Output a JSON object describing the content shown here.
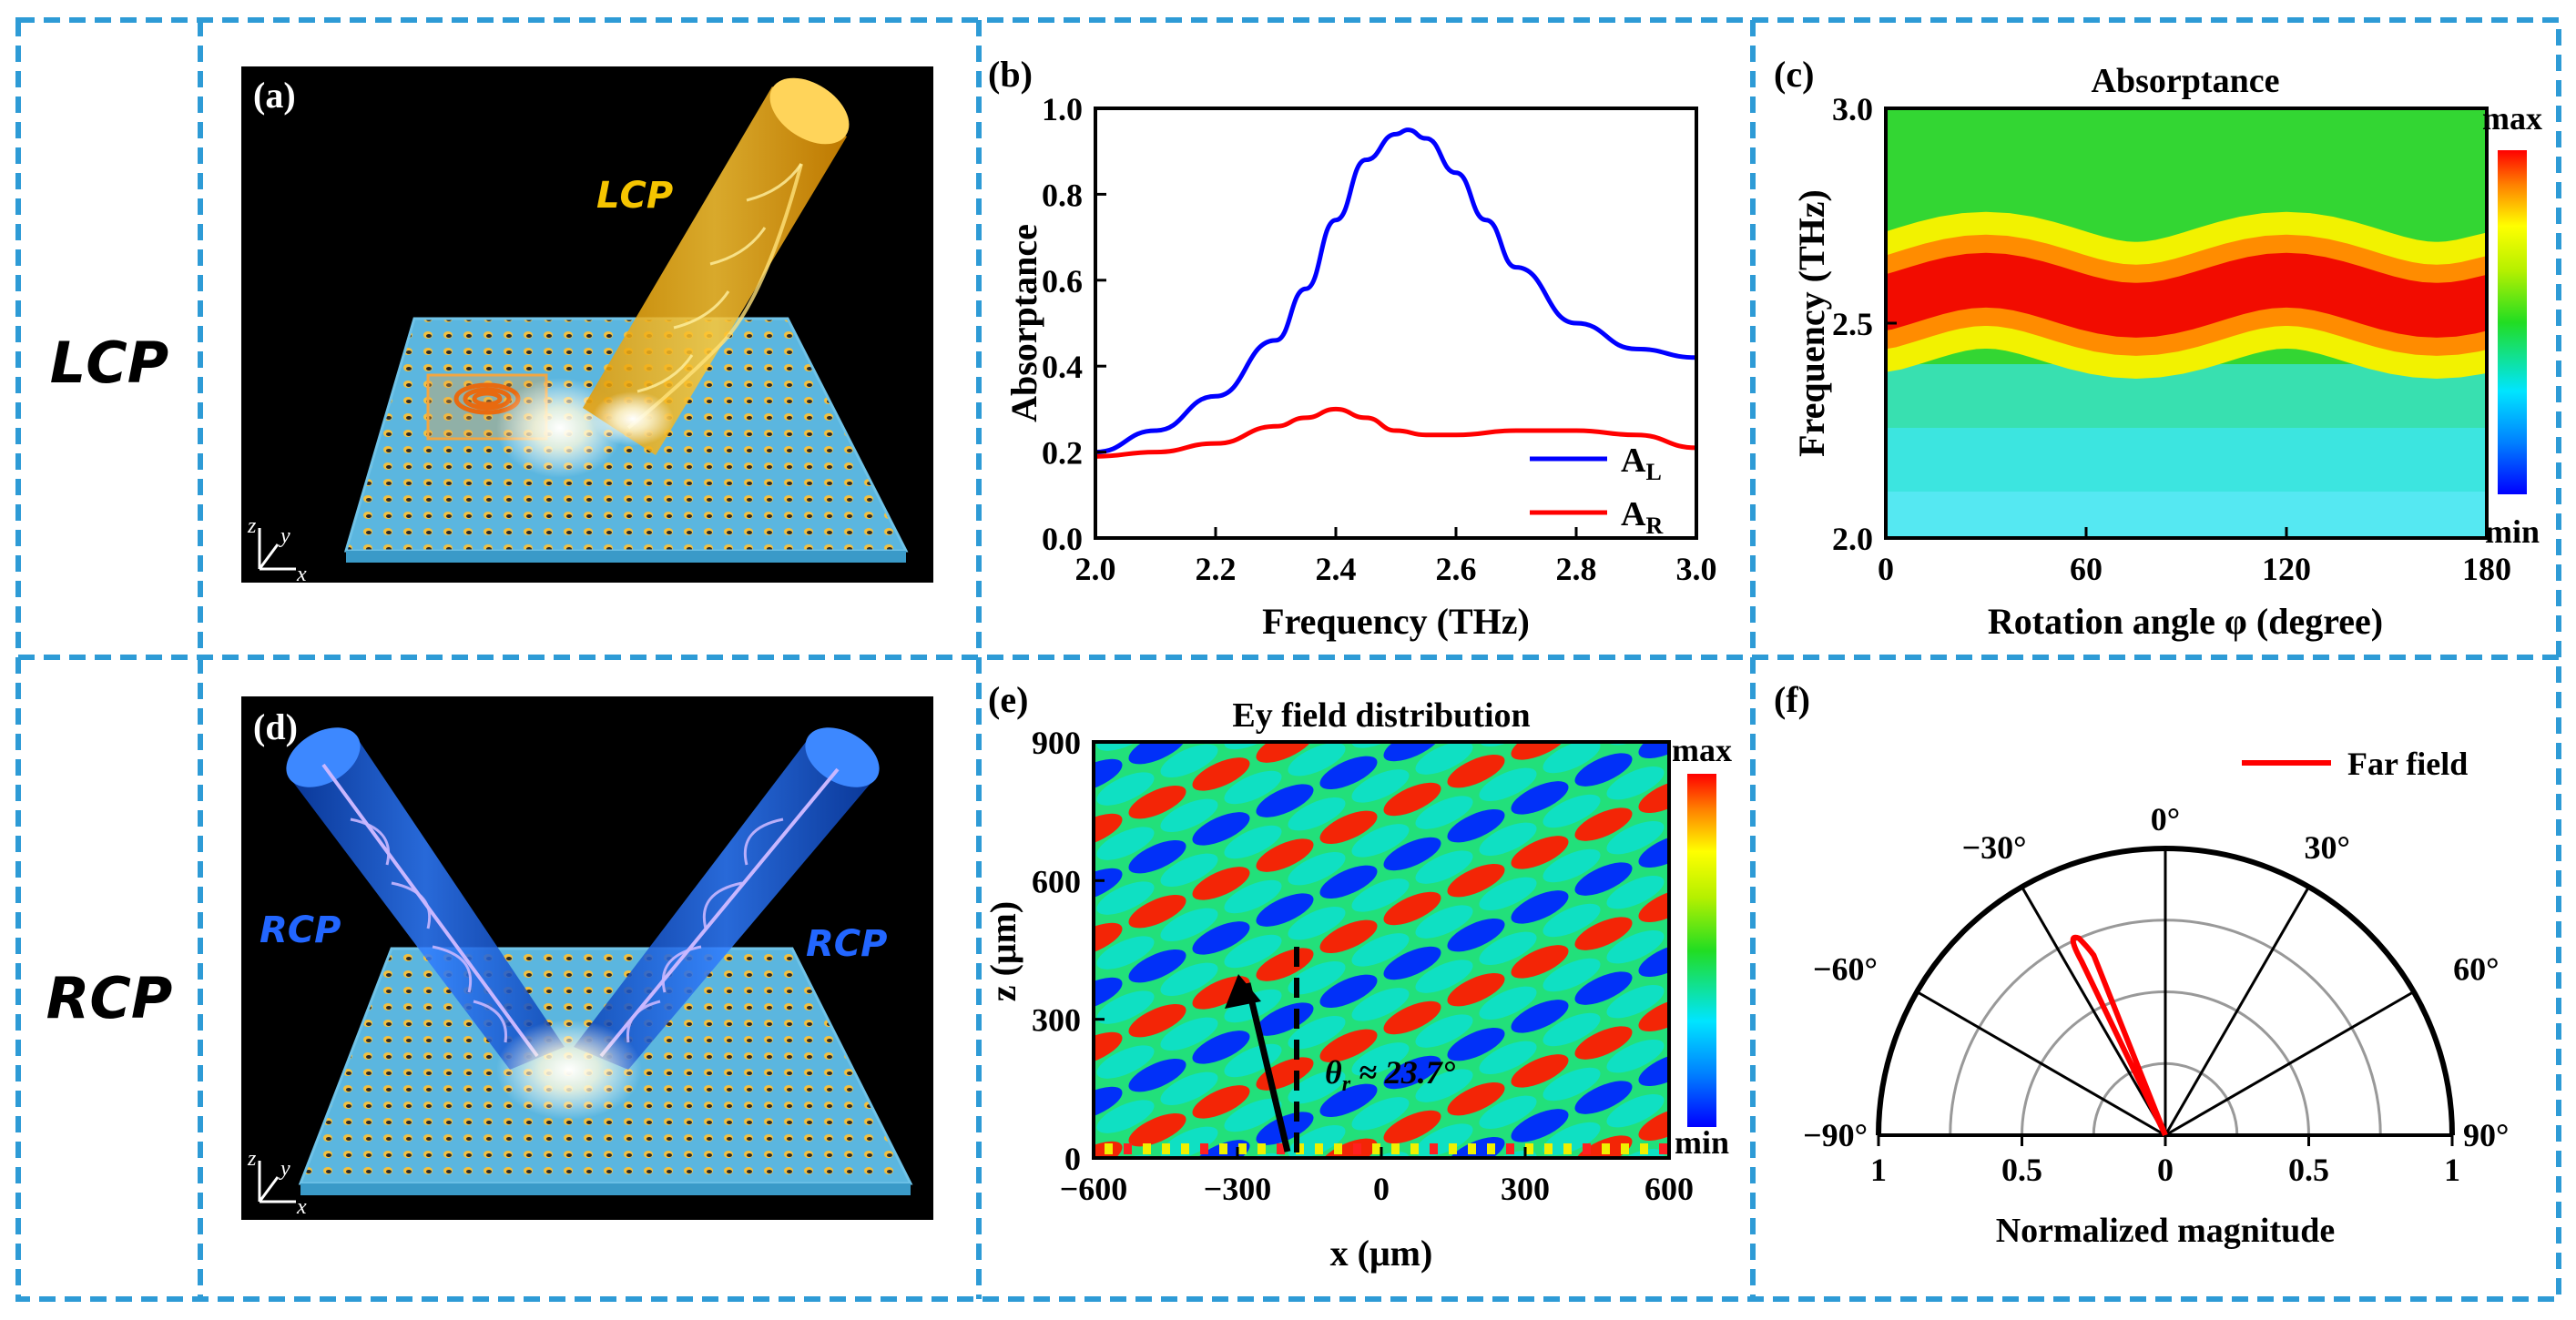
{
  "rows": {
    "top_label": "LCP",
    "bottom_label": "RCP"
  },
  "panel_a": {
    "label": "(a)",
    "beam_label": "LCP",
    "axis_z": "z",
    "axis_y": "y",
    "axis_x": "x"
  },
  "panel_d": {
    "label": "(d)",
    "beam_left_label": "RCP",
    "beam_right_label": "RCP",
    "axis_z": "z",
    "axis_y": "y",
    "axis_x": "x"
  },
  "colorbar": {
    "max_label": "max",
    "min_label": "min"
  },
  "colors": {
    "frame_dash": "#2e9bd6",
    "blue": "#0000ff",
    "red": "#ff0000"
  },
  "chart_data": [
    {
      "id": "b",
      "type": "line",
      "label": "(b)",
      "xlabel": "Frequency (THz)",
      "ylabel": "Absorptance",
      "xlim": [
        2.0,
        3.0
      ],
      "ylim": [
        0.0,
        1.0
      ],
      "xticks": [
        "2.0",
        "2.2",
        "2.4",
        "2.6",
        "2.8",
        "3.0"
      ],
      "yticks": [
        "0.0",
        "0.2",
        "0.4",
        "0.6",
        "0.8",
        "1.0"
      ],
      "legend": "bottom-right",
      "series": [
        {
          "name": "A",
          "sub": "L",
          "color": "#0000ff",
          "x": [
            2.0,
            2.1,
            2.2,
            2.3,
            2.35,
            2.4,
            2.45,
            2.5,
            2.52,
            2.55,
            2.6,
            2.65,
            2.7,
            2.8,
            2.9,
            3.0
          ],
          "y": [
            0.2,
            0.25,
            0.33,
            0.46,
            0.58,
            0.74,
            0.88,
            0.94,
            0.95,
            0.93,
            0.85,
            0.74,
            0.63,
            0.5,
            0.44,
            0.42
          ]
        },
        {
          "name": "A",
          "sub": "R",
          "color": "#ff0000",
          "x": [
            2.0,
            2.1,
            2.2,
            2.3,
            2.35,
            2.4,
            2.45,
            2.5,
            2.55,
            2.6,
            2.7,
            2.8,
            2.9,
            3.0
          ],
          "y": [
            0.19,
            0.2,
            0.22,
            0.26,
            0.28,
            0.3,
            0.28,
            0.25,
            0.24,
            0.24,
            0.25,
            0.25,
            0.24,
            0.21
          ]
        }
      ]
    },
    {
      "id": "c",
      "type": "heatmap",
      "label": "(c)",
      "title": "Absorptance",
      "xlabel": "Rotation angle φ (degree)",
      "ylabel": "Frequency (THz)",
      "xlim": [
        0,
        180
      ],
      "ylim": [
        2.0,
        3.0
      ],
      "xticks": [
        "0",
        "60",
        "120",
        "180"
      ],
      "yticks": [
        "2.0",
        "2.5",
        "3.0"
      ],
      "colorbar": [
        "max",
        "min"
      ],
      "peak_frequency_vs_angle": {
        "angle": [
          0,
          30,
          75,
          120,
          165,
          180
        ],
        "freq": [
          2.54,
          2.6,
          2.53,
          2.6,
          2.53,
          2.54
        ]
      }
    },
    {
      "id": "e",
      "type": "heatmap",
      "label": "(e)",
      "title": "Ey field distribution",
      "xlabel": "x (μm)",
      "ylabel": "z (μm)",
      "xlim": [
        -600,
        600
      ],
      "ylim": [
        0,
        900
      ],
      "xticks": [
        "−600",
        "−300",
        "0",
        "300",
        "600"
      ],
      "yticks": [
        "0",
        "300",
        "600",
        "900"
      ],
      "colorbar": [
        "max",
        "min"
      ],
      "annotation": "θ_r ≈ 23.7°",
      "annotation_main": "θ",
      "annotation_sub": "r",
      "annotation_rest": " ≈ 23.7°"
    },
    {
      "id": "f",
      "type": "polar",
      "label": "(f)",
      "xlabel": "Normalized magnitude",
      "legend": "top-right",
      "series": [
        {
          "name": "Far field",
          "color": "#ff0000",
          "peak_angle_deg": -23.7,
          "peak_magnitude": 0.75
        }
      ],
      "angle_ticks": [
        "−90°",
        "−60°",
        "−30°",
        "0°",
        "30°",
        "60°",
        "90°"
      ],
      "radial_ticks": [
        "1",
        "0.5",
        "0",
        "0.5",
        "1"
      ]
    }
  ]
}
